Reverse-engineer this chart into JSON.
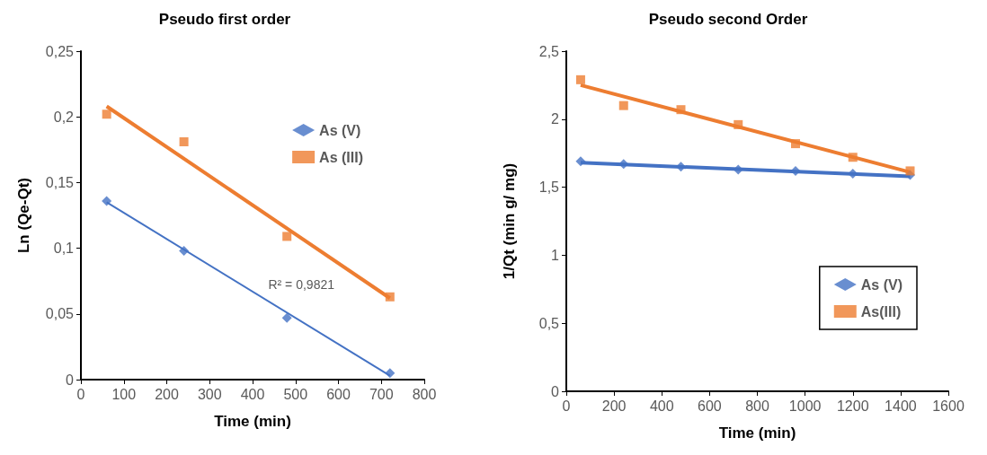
{
  "chart_data": [
    {
      "type": "scatter",
      "title": "Pseudo first order",
      "xlabel": "Time (min)",
      "ylabel": "Ln (Qe-Qt)",
      "xlim": [
        0,
        800
      ],
      "xticks": [
        0,
        100,
        200,
        300,
        400,
        500,
        600,
        700,
        800
      ],
      "ylim": [
        0,
        0.25
      ],
      "yticks": [
        0,
        {
          "value": 0.05,
          "label": "0,05"
        },
        {
          "value": 0.1,
          "label": "0,1"
        },
        {
          "value": 0.15,
          "label": "0,15"
        },
        {
          "value": 0.2,
          "label": "0,2"
        },
        {
          "value": 0.25,
          "label": "0,25"
        }
      ],
      "grid": false,
      "legend": "top right",
      "annotations": [
        "R² = 0,9821"
      ],
      "series": [
        {
          "name": "As (V)",
          "color": "#4472c4",
          "marker": "diamond",
          "x": [
            60,
            240,
            480,
            720
          ],
          "values": [
            0.136,
            0.098,
            0.047,
            0.005
          ]
        },
        {
          "name": "As (III)",
          "color": "#ed7d31",
          "marker": "square",
          "x": [
            60,
            240,
            480,
            720
          ],
          "values": [
            0.202,
            0.181,
            0.109,
            0.063
          ]
        },
        {
          "type": "line",
          "color": "#4472c4",
          "marker": "none",
          "x": [
            60,
            720
          ],
          "values": [
            0.135,
            0.003
          ]
        },
        {
          "type": "line",
          "color": "#ed7d31",
          "marker": "none",
          "x": [
            60,
            720
          ],
          "values": [
            0.208,
            0.062
          ]
        }
      ]
    },
    {
      "type": "scatter",
      "title": "Pseudo second Order",
      "xlabel": "Time (min)",
      "ylabel": "1/Qt (min g/ mg)",
      "xlim": [
        0,
        1600
      ],
      "xticks": [
        0,
        200,
        400,
        600,
        800,
        1000,
        1200,
        1400,
        1600
      ],
      "ylim": [
        0,
        2.5
      ],
      "yticks": [
        0,
        {
          "value": 0.5,
          "label": "0,5"
        },
        1,
        {
          "value": 1.5,
          "label": "1,5"
        },
        2,
        {
          "value": 2.5,
          "label": "2,5"
        }
      ],
      "grid": false,
      "legend": "bottom right",
      "series": [
        {
          "name": "As (V)",
          "color": "#4472c4",
          "marker": "diamond",
          "x": [
            60,
            240,
            480,
            720,
            960,
            1200,
            1440
          ],
          "values": [
            1.69,
            1.67,
            1.65,
            1.63,
            1.62,
            1.6,
            1.59
          ]
        },
        {
          "name": "As(III)",
          "color": "#ed7d31",
          "marker": "square",
          "x": [
            60,
            240,
            480,
            720,
            960,
            1200,
            1440
          ],
          "values": [
            2.29,
            2.1,
            2.07,
            1.96,
            1.82,
            1.72,
            1.62
          ]
        },
        {
          "type": "line",
          "color": "#4472c4",
          "marker": "none",
          "x": [
            60,
            1440
          ],
          "values": [
            1.68,
            1.58
          ]
        },
        {
          "type": "line",
          "color": "#ed7d31",
          "marker": "none",
          "x": [
            60,
            1440
          ],
          "values": [
            2.25,
            1.61
          ]
        }
      ]
    }
  ]
}
